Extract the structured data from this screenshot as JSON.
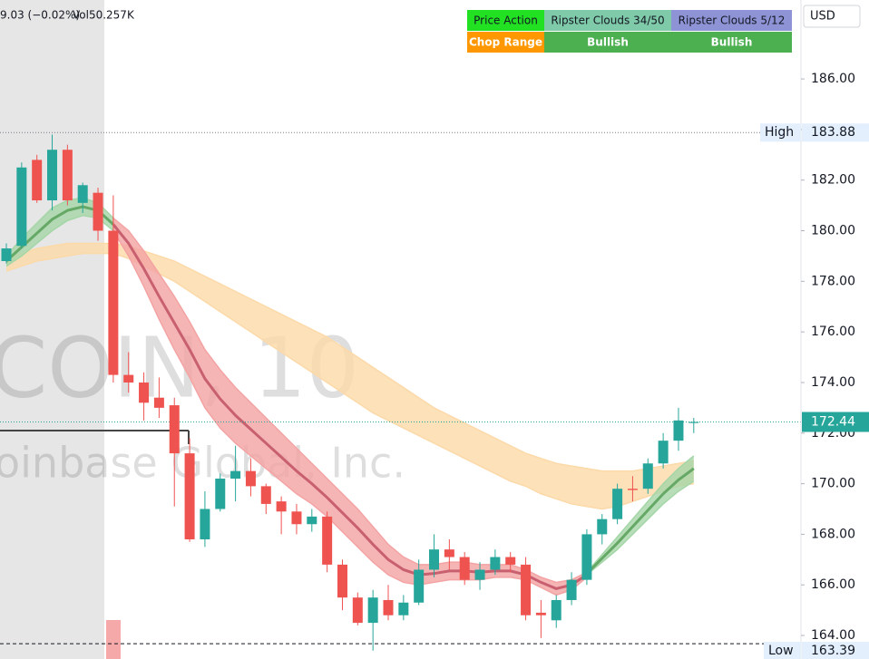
{
  "chart_data": {
    "type": "candlestick",
    "title": "COIN, 10",
    "subtitle": "oinbase Global, Inc.",
    "change": "9.03 (−0.02%)",
    "volume": "Vol50.257K",
    "currency": "USD",
    "up_color": "#26a69a",
    "down_color": "#ef5350",
    "open": [
      178.8,
      179.4,
      182.8,
      181.2,
      183.2,
      181.1,
      181.5,
      180.0,
      174.3,
      174.0,
      173.4,
      173.1,
      171.2,
      167.8,
      169.0,
      170.2,
      170.5,
      169.9,
      169.3,
      168.9,
      168.4,
      168.7,
      166.8,
      165.5,
      164.5,
      165.4,
      164.8,
      165.3,
      166.6,
      167.4,
      167.1,
      166.2,
      166.6,
      167.1,
      166.8,
      164.9,
      164.6,
      165.4,
      166.2,
      168.0,
      168.6,
      169.8,
      169.8,
      170.8,
      171.7,
      172.4
    ],
    "high": [
      179.5,
      182.7,
      183.0,
      183.8,
      183.4,
      181.9,
      181.7,
      181.4,
      175.2,
      174.4,
      174.2,
      173.4,
      171.8,
      169.7,
      170.4,
      171.5,
      171.0,
      170.0,
      169.5,
      169.2,
      169.0,
      168.9,
      167.0,
      165.7,
      165.8,
      166.0,
      165.6,
      167.0,
      168.0,
      167.8,
      167.3,
      166.9,
      167.4,
      167.3,
      167.1,
      165.4,
      165.6,
      166.5,
      168.2,
      168.8,
      170.0,
      170.3,
      171.0,
      172.0,
      173.0,
      172.6
    ],
    "low": [
      178.7,
      179.3,
      181.1,
      180.8,
      181.0,
      180.7,
      179.6,
      174.0,
      173.6,
      172.5,
      172.6,
      169.1,
      167.7,
      167.5,
      168.9,
      169.3,
      169.5,
      168.8,
      168.0,
      168.0,
      168.1,
      166.5,
      165.0,
      164.4,
      163.4,
      164.6,
      164.6,
      165.2,
      166.3,
      166.6,
      166.0,
      165.8,
      166.4,
      166.5,
      164.6,
      163.9,
      164.3,
      165.2,
      166.0,
      167.6,
      168.4,
      169.3,
      169.6,
      170.6,
      171.3,
      172.0
    ],
    "close": [
      179.3,
      182.5,
      181.2,
      183.2,
      181.2,
      181.8,
      180.0,
      174.3,
      174.0,
      173.2,
      173.0,
      171.2,
      167.8,
      169.0,
      170.2,
      170.5,
      169.9,
      169.2,
      168.9,
      168.4,
      168.7,
      166.8,
      165.5,
      164.5,
      165.5,
      164.8,
      165.3,
      166.6,
      167.4,
      167.1,
      166.2,
      166.6,
      167.1,
      166.8,
      164.8,
      164.8,
      165.4,
      166.2,
      168.0,
      168.6,
      169.8,
      169.75,
      170.8,
      171.7,
      172.5,
      172.44
    ],
    "ylim": [
      163.07,
      189.12
    ],
    "yticks": [
      {
        "value": 164,
        "label": "164.00"
      },
      {
        "value": 166,
        "label": "166.00"
      },
      {
        "value": 168,
        "label": "168.00"
      },
      {
        "value": 170,
        "label": "170.00"
      },
      {
        "value": 172,
        "label": "172.00"
      },
      {
        "value": 174,
        "label": "174.00"
      },
      {
        "value": 176,
        "label": "176.00"
      },
      {
        "value": 178,
        "label": "178.00"
      },
      {
        "value": 180,
        "label": "180.00"
      },
      {
        "value": 182,
        "label": "182.00"
      },
      {
        "value": 184,
        "label": "184.00"
      },
      {
        "value": 186,
        "label": "186.00"
      }
    ],
    "high_marker": {
      "label": "High",
      "value": 183.88
    },
    "low_marker": {
      "label": "Low",
      "value": 163.39
    },
    "last_price": 172.44,
    "clouds": [
      {
        "color": "#fcd9a8",
        "lower": [
          178.4,
          178.6,
          178.8,
          178.9,
          179.0,
          179.1,
          179.1,
          179.1,
          178.9,
          178.6,
          178.3,
          178.0,
          177.6,
          177.2,
          176.8,
          176.4,
          176.0,
          175.6,
          175.2,
          174.8,
          174.4,
          174.0,
          173.6,
          173.2,
          172.8,
          172.5,
          172.2,
          171.9,
          171.6,
          171.3,
          171.0,
          170.7,
          170.4,
          170.1,
          169.9,
          169.6,
          169.4,
          169.2,
          169.1,
          169.0,
          169.1,
          169.3,
          169.5,
          169.7,
          169.9,
          170.0
        ],
        "upper": [
          178.9,
          179.1,
          179.3,
          179.4,
          179.5,
          179.5,
          179.5,
          179.5,
          179.4,
          179.2,
          179.0,
          178.8,
          178.5,
          178.2,
          177.9,
          177.6,
          177.3,
          177.0,
          176.7,
          176.4,
          176.1,
          175.8,
          175.4,
          175.0,
          174.6,
          174.2,
          173.8,
          173.4,
          173.0,
          172.7,
          172.4,
          172.1,
          171.8,
          171.5,
          171.2,
          171.0,
          170.8,
          170.7,
          170.6,
          170.5,
          170.5,
          170.5,
          170.6,
          170.7,
          170.8,
          170.9
        ]
      },
      {
        "color": "#a5d6a7",
        "lower": [
          178.6,
          179.0,
          179.5,
          180.0,
          180.4,
          180.6,
          180.5,
          180.0,
          null,
          null,
          null,
          null,
          null,
          null,
          null,
          null,
          null,
          null,
          null,
          null,
          null,
          null,
          null,
          null,
          null,
          null,
          null,
          null,
          null,
          null,
          null,
          null,
          null,
          null,
          null,
          null,
          null,
          null,
          166.4,
          166.9,
          167.4,
          168.0,
          168.6,
          169.2,
          169.7,
          170.1
        ],
        "upper": [
          179.0,
          179.7,
          180.3,
          180.9,
          181.2,
          181.3,
          181.1,
          180.5,
          null,
          null,
          null,
          null,
          null,
          null,
          null,
          null,
          null,
          null,
          null,
          null,
          null,
          null,
          null,
          null,
          null,
          null,
          null,
          null,
          null,
          null,
          null,
          null,
          null,
          null,
          null,
          null,
          null,
          null,
          166.5,
          167.2,
          167.9,
          168.6,
          169.3,
          170.0,
          170.6,
          171.1
        ]
      },
      {
        "color": "#f4a3a3",
        "lower": [
          null,
          null,
          null,
          null,
          null,
          null,
          null,
          180.0,
          179.0,
          177.8,
          176.5,
          175.3,
          174.2,
          173.0,
          172.2,
          171.6,
          171.1,
          170.6,
          170.1,
          169.6,
          169.2,
          168.7,
          168.1,
          167.5,
          166.9,
          166.4,
          166.1,
          166.0,
          166.1,
          166.2,
          166.2,
          166.2,
          166.3,
          166.3,
          166.2,
          165.9,
          165.6,
          165.8,
          166.3,
          null,
          null,
          null,
          null,
          null,
          null,
          null
        ],
        "upper": [
          null,
          null,
          null,
          null,
          null,
          null,
          null,
          180.5,
          180.0,
          179.2,
          178.3,
          177.4,
          176.4,
          175.3,
          174.5,
          173.8,
          173.2,
          172.6,
          172.0,
          171.4,
          170.8,
          170.2,
          169.6,
          169.0,
          168.3,
          167.6,
          167.1,
          166.8,
          166.8,
          166.9,
          166.9,
          166.8,
          166.8,
          166.8,
          166.6,
          166.3,
          166.1,
          166.2,
          166.5,
          null,
          null,
          null,
          null,
          null,
          null,
          null
        ]
      }
    ],
    "table": {
      "rows": [
        [
          "Price Action",
          "Ripster Clouds 34/50",
          "Ripster Clouds 5/12"
        ],
        [
          "Chop Range",
          "Bullish",
          "Bullish"
        ]
      ],
      "colors": [
        [
          "#22e022",
          "#7fcaa9",
          "#8e93d6"
        ],
        [
          "#ff9800",
          "#4caf50",
          "#4caf50"
        ]
      ],
      "text_colors": [
        [
          "#131722",
          "#131722",
          "#131722"
        ],
        [
          "#ffffff",
          "#ffffff",
          "#ffffff"
        ]
      ]
    }
  }
}
